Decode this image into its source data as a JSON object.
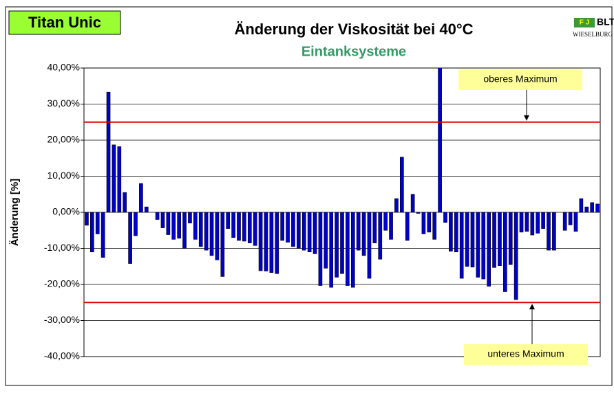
{
  "chart_data": {
    "type": "bar",
    "title": "Änderung der Viskosität bei 40°C",
    "subtitle": "Eintanksysteme",
    "badge": "Titan Unic",
    "logo": {
      "mark": "F J",
      "name": "BLT",
      "place": "WIESELBURG"
    },
    "ylabel": "Änderung [%]",
    "color": "#0000cc",
    "ylim": [
      -40,
      40
    ],
    "yticks": [
      {
        "value": 40,
        "label": "40,00%"
      },
      {
        "value": 30,
        "label": "30,00%"
      },
      {
        "value": 20,
        "label": "20,00%"
      },
      {
        "value": 10,
        "label": "10,00%"
      },
      {
        "value": 0,
        "label": "0,00%"
      },
      {
        "value": -10,
        "label": "-10,00%"
      },
      {
        "value": -20,
        "label": "-20,00%"
      },
      {
        "value": -30,
        "label": "-30,00%"
      },
      {
        "value": -40,
        "label": "-40,00%"
      }
    ],
    "grid": true,
    "reference_lines": [
      {
        "value": 25,
        "label": "oberes Maximum",
        "color": "#e00000"
      },
      {
        "value": -25,
        "label": "unteres Maximum",
        "color": "#e00000"
      }
    ],
    "values": [
      -3.6,
      -11,
      -6,
      -12.5,
      33.3,
      18.7,
      18.2,
      5.5,
      -14.2,
      -6.5,
      8,
      1.5,
      0,
      -2,
      -4.3,
      -6.2,
      -7.5,
      -7.2,
      -10,
      -3,
      -7.5,
      -9.5,
      -10.5,
      -12,
      -13.2,
      -17.8,
      -4.5,
      -7,
      -7.8,
      -8,
      -8.5,
      -9.2,
      -16.2,
      -16.3,
      -16.7,
      -17,
      -7.8,
      -8.3,
      -9.5,
      -10,
      -10.5,
      -11,
      -11.5,
      -20.3,
      -15.5,
      -20.8,
      -18,
      -17,
      -20.3,
      -20.8,
      -10.5,
      -12,
      -18.3,
      -8.5,
      -13,
      -5,
      -7.5,
      3.8,
      15.3,
      -7.8,
      5,
      -0.3,
      -6,
      -5.5,
      -7.5,
      41,
      -2.8,
      -10.8,
      -11,
      -18.3,
      -15,
      -15.2,
      -18,
      -18.5,
      -20.5,
      -15.3,
      -14.8,
      -22,
      -14.5,
      -24.2,
      -5.5,
      -5.3,
      -6.3,
      -5.8,
      -4.5,
      -10.5,
      -10.5,
      0,
      -5,
      -3.5,
      -5.3,
      3.8,
      1.5,
      2.7,
      2.3
    ]
  }
}
